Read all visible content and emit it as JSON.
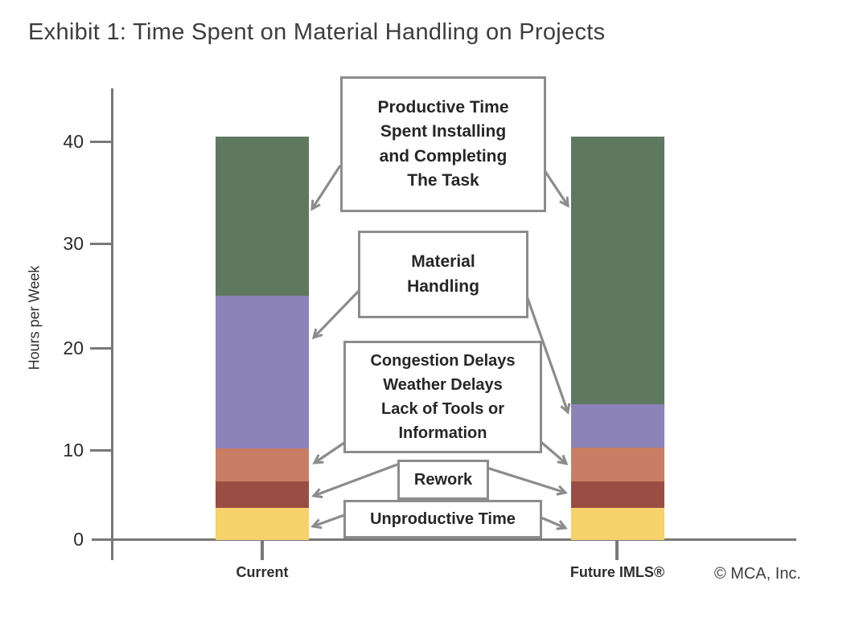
{
  "title": "Exhibit 1: Time Spent on Material Handling on Projects",
  "copyright": "© MCA, Inc.",
  "colors": {
    "productive_green": "#5f7860",
    "material_purple": "#8c83b8",
    "delays_salmon": "#c97d65",
    "rework_darkred": "#9a4d43",
    "unproductive_yellow": "#f6d26b",
    "axis_gray": "#787878",
    "arrow_box_gray": "#8c8c8c",
    "text_dark": "#2b2b2b"
  },
  "chart_data": {
    "type": "bar",
    "stacked": true,
    "title": "Exhibit 1: Time Spent on Material Handling on Projects",
    "ylabel": "Hours per Week",
    "xlabel": "",
    "yticks": [
      0,
      10,
      20,
      30,
      40
    ],
    "ylim": [
      0,
      44
    ],
    "grid": false,
    "legend": "callout boxes with arrows pointing to segments",
    "categories": [
      "Current",
      "Future IMLS®"
    ],
    "series": [
      {
        "key": "unproductive",
        "name": "Unproductive Time",
        "color": "#f6d26b",
        "values": [
          3.2,
          3.2
        ]
      },
      {
        "key": "rework",
        "name": "Rework",
        "color": "#9a4d43",
        "values": [
          2.7,
          2.7
        ]
      },
      {
        "key": "delays",
        "name": "Congestion Delays, Weather Delays, Lack of Tools or Information",
        "color": "#c97d65",
        "values": [
          3.3,
          3.4
        ]
      },
      {
        "key": "material",
        "name": "Material Handling",
        "color": "#8c83b8",
        "values": [
          15.3,
          4.3
        ]
      },
      {
        "key": "productive",
        "name": "Productive Time Spent Installing and Completing The Task",
        "color": "#5f7860",
        "values": [
          16.0,
          26.9
        ]
      }
    ]
  },
  "callouts": {
    "productive": {
      "text": "Productive Time\nSpent Installing\nand Completing\nThe Task"
    },
    "material": {
      "text": "Material\nHandling"
    },
    "congestion": {
      "text": "Congestion Delays\nWeather Delays\nLack of Tools or\nInformation"
    },
    "rework": {
      "text": "Rework"
    },
    "unproductive": {
      "text": "Unproductive Time"
    }
  }
}
